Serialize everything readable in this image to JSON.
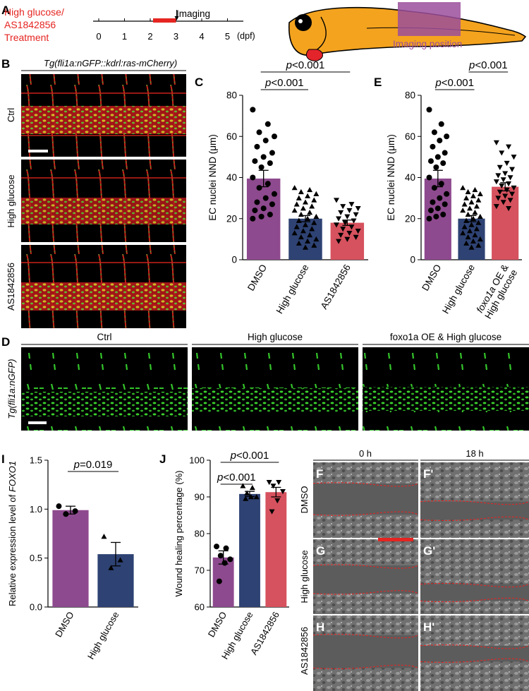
{
  "panel_a": {
    "letter": "A",
    "treatment_label": [
      "High glucose/",
      "AS1842856",
      "Treatment"
    ],
    "imaging_label": "Imaging",
    "ticks": [
      "0",
      "1",
      "2",
      "3",
      "4",
      "5"
    ],
    "unit": "(dpf)",
    "imaging_position": "Imaging position",
    "treatment_window": [
      2,
      3
    ],
    "imaging_time": 3
  },
  "panel_b": {
    "letter": "B",
    "title": "Tg(fli1a:nGFP::kdrl:ras-mCherry)",
    "rows": [
      "Ctrl",
      "High glucose",
      "AS1842856"
    ]
  },
  "panel_d": {
    "letter": "D",
    "side_label": "Tg(fli1a:nGFP)",
    "columns": [
      "Ctrl",
      "High glucose",
      "foxo1a OE & High glucose"
    ]
  },
  "panel_fh": {
    "timepoints": [
      "0 h",
      "18 h"
    ],
    "rows": [
      "DMSO",
      "High glucose",
      "AS1842856"
    ],
    "letters": [
      "F",
      "F'",
      "G",
      "G'",
      "H",
      "H'"
    ]
  },
  "colors": {
    "dmso": "#8E4A8E",
    "high_glucose": "#2E4273",
    "as1842856": "#D6525E",
    "foxo1a": "#D6525E",
    "treatment_bar": "#E52521",
    "imaging_box": "#9B4F9B"
  },
  "chart_data": [
    {
      "panel": "C",
      "type": "bar",
      "ylabel": "EC nuclei NND (μm)",
      "ylim": [
        0,
        80
      ],
      "yticks": [
        0,
        20,
        40,
        60,
        80
      ],
      "categories": [
        "DMSO",
        "High glucose",
        "AS1842856"
      ],
      "values": [
        39.5,
        20,
        18
      ],
      "errors": [
        4,
        1.5,
        1.3
      ],
      "markers": [
        "circle",
        "triangle-up",
        "triangle-down"
      ],
      "points": [
        [
          73,
          66,
          62,
          60,
          58,
          55,
          52,
          50,
          48,
          47,
          45,
          40,
          37,
          35,
          32,
          30,
          28,
          27,
          25,
          24,
          22,
          21,
          20
        ],
        [
          35,
          34,
          33,
          32,
          31,
          30,
          29,
          28,
          27,
          26,
          25,
          24,
          23,
          22,
          21,
          20,
          19,
          18,
          17,
          16,
          15,
          14,
          13,
          12,
          11,
          10,
          9,
          8,
          7,
          6
        ],
        [
          29,
          27,
          26,
          25,
          24,
          23,
          22,
          21,
          20,
          19,
          18,
          17,
          16,
          15,
          14,
          13,
          12,
          11,
          10,
          9
        ]
      ],
      "comparisons": [
        {
          "pair": [
            0,
            1
          ],
          "text": "p<0.001"
        },
        {
          "pair": [
            0,
            2
          ],
          "text": "p<0.001"
        }
      ]
    },
    {
      "panel": "E",
      "type": "bar",
      "ylabel": "EC nuclei NND (μm)",
      "ylim": [
        0,
        80
      ],
      "yticks": [
        0,
        20,
        40,
        60,
        80
      ],
      "categories": [
        "DMSO",
        "High glucose",
        "foxo1a OE &\nHigh glucose"
      ],
      "values": [
        39.5,
        20,
        35.5
      ],
      "errors": [
        4,
        1.5,
        2
      ],
      "markers": [
        "circle",
        "triangle-up",
        "triangle-down"
      ],
      "points": [
        [
          73,
          66,
          62,
          60,
          58,
          55,
          52,
          50,
          48,
          47,
          45,
          40,
          37,
          35,
          32,
          30,
          28,
          27,
          25,
          24,
          22,
          21,
          20
        ],
        [
          35,
          34,
          33,
          32,
          31,
          30,
          29,
          28,
          27,
          26,
          25,
          24,
          23,
          22,
          21,
          20,
          19,
          18,
          17,
          16,
          15,
          14,
          13,
          12,
          11,
          10,
          9,
          8,
          7,
          6
        ],
        [
          57,
          55,
          52,
          50,
          47,
          45,
          44,
          42,
          41,
          40,
          39,
          38,
          37,
          36,
          35,
          34,
          33,
          32,
          31,
          30,
          29,
          28,
          26,
          25
        ]
      ],
      "comparisons": [
        {
          "pair": [
            0,
            1
          ],
          "text": "p<0.001"
        },
        {
          "pair": [
            1,
            2
          ],
          "text": "p<0.001"
        }
      ]
    },
    {
      "panel": "I",
      "type": "bar",
      "ylabel": "Relative expression level of FOXO1",
      "ylim": [
        0,
        1.5
      ],
      "yticks": [
        0.0,
        0.5,
        1.0,
        1.5
      ],
      "categories": [
        "DMSO",
        "High glucose"
      ],
      "values": [
        0.99,
        0.54
      ],
      "errors": [
        0.04,
        0.12
      ],
      "markers": [
        "circle",
        "triangle-up"
      ],
      "points": [
        [
          1.03,
          0.98,
          0.95
        ],
        [
          0.72,
          0.48,
          0.4
        ]
      ],
      "comparisons": [
        {
          "pair": [
            0,
            1
          ],
          "text": "p=0.019"
        }
      ]
    },
    {
      "panel": "J",
      "type": "bar",
      "ylabel": "Wound healing percentage (%)",
      "ylim": [
        60,
        100
      ],
      "yticks": [
        60,
        70,
        80,
        90,
        100
      ],
      "categories": [
        "DMSO",
        "High glucose",
        "AS1842856"
      ],
      "values": [
        73.5,
        90.8,
        91.3
      ],
      "errors": [
        1.8,
        0.7,
        1.3
      ],
      "markers": [
        "circle",
        "triangle-up",
        "triangle-down"
      ],
      "points": [
        [
          76.5,
          76,
          74,
          73,
          72,
          67
        ],
        [
          93,
          92.5,
          91,
          90,
          90,
          89.5
        ],
        [
          94,
          94,
          93,
          91.5,
          89,
          86
        ]
      ],
      "comparisons": [
        {
          "pair": [
            0,
            1
          ],
          "text": "p<0.001"
        },
        {
          "pair": [
            0,
            2
          ],
          "text": "p<0.001"
        }
      ]
    }
  ]
}
